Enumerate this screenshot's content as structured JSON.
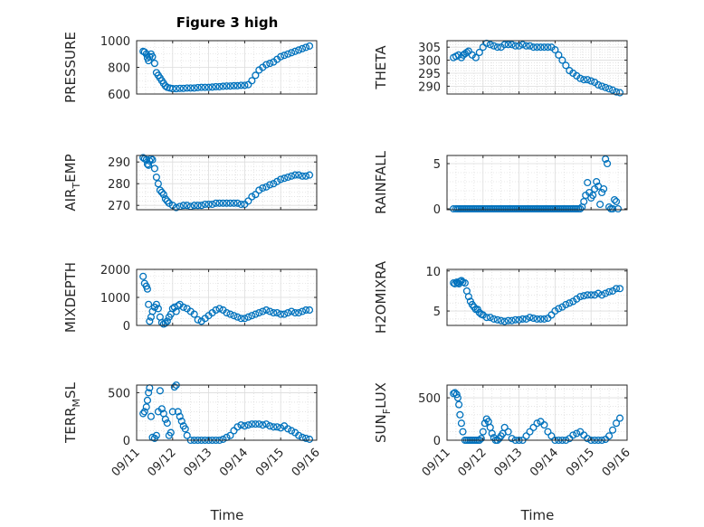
{
  "figure": {
    "title": "Figure 3 high",
    "xlabel": "Time",
    "marker_color": "#0072BD",
    "grid": true,
    "x_ticks": [
      "09/11",
      "09/12",
      "09/13",
      "09/14",
      "09/15",
      "09/16"
    ]
  },
  "chart_data": [
    {
      "type": "scatter",
      "id": "pressure",
      "title": "Figure 3 high",
      "ylabel": "PRESSURE",
      "ylabel_sub": "",
      "ylabel_rest": "",
      "xlabel": "",
      "xlim": [
        0,
        5
      ],
      "ylim": [
        600,
        1000
      ],
      "yticks": [
        600,
        800,
        1000
      ],
      "yminor": 50,
      "x": [
        0.18,
        0.22,
        0.27,
        0.3,
        0.33,
        0.36,
        0.4,
        0.44,
        0.5,
        0.55,
        0.6,
        0.65,
        0.7,
        0.75,
        0.8,
        0.85,
        0.92,
        1.0,
        1.1,
        1.2,
        1.3,
        1.4,
        1.5,
        1.6,
        1.7,
        1.8,
        1.9,
        2.0,
        2.1,
        2.2,
        2.3,
        2.4,
        2.5,
        2.6,
        2.7,
        2.8,
        2.9,
        3.0,
        3.1,
        3.2,
        3.3,
        3.4,
        3.5,
        3.6,
        3.7,
        3.8,
        3.9,
        4.0,
        4.1,
        4.2,
        4.3,
        4.4,
        4.5,
        4.6,
        4.7,
        4.8
      ],
      "y": [
        920,
        915,
        900,
        870,
        850,
        880,
        900,
        880,
        830,
        760,
        740,
        720,
        700,
        680,
        660,
        650,
        645,
        640,
        640,
        642,
        642,
        645,
        645,
        645,
        648,
        650,
        650,
        650,
        652,
        655,
        655,
        658,
        660,
        660,
        662,
        662,
        665,
        665,
        670,
        700,
        740,
        780,
        800,
        820,
        830,
        840,
        860,
        880,
        890,
        900,
        910,
        920,
        930,
        940,
        950,
        960
      ]
    },
    {
      "type": "scatter",
      "id": "theta",
      "title": "",
      "ylabel": "THETA",
      "ylabel_sub": "",
      "ylabel_rest": "",
      "xlabel": "",
      "xlim": [
        0,
        5
      ],
      "ylim": [
        287,
        307.5
      ],
      "yticks": [
        290,
        295,
        300,
        305
      ],
      "yminor": 1,
      "x": [
        0.18,
        0.25,
        0.32,
        0.4,
        0.45,
        0.5,
        0.55,
        0.6,
        0.7,
        0.8,
        0.9,
        1.0,
        1.1,
        1.2,
        1.3,
        1.4,
        1.5,
        1.6,
        1.7,
        1.8,
        1.9,
        2.0,
        2.1,
        2.2,
        2.3,
        2.4,
        2.5,
        2.6,
        2.7,
        2.8,
        2.9,
        3.0,
        3.1,
        3.2,
        3.3,
        3.4,
        3.5,
        3.6,
        3.7,
        3.8,
        3.9,
        4.0,
        4.1,
        4.2,
        4.3,
        4.4,
        4.5,
        4.6,
        4.7,
        4.8
      ],
      "y": [
        301,
        301.5,
        302,
        301,
        302,
        302.5,
        303,
        303.5,
        302,
        301,
        303,
        305,
        306.5,
        306,
        305.5,
        305,
        305,
        306,
        306,
        306,
        305.5,
        305.5,
        306,
        305.5,
        305.5,
        305,
        305,
        305,
        305,
        305,
        305,
        304,
        302,
        300,
        298,
        296,
        295,
        294,
        293,
        292.5,
        292.5,
        292,
        291.5,
        290.5,
        290,
        289.5,
        289,
        288.5,
        287.8,
        287.5
      ]
    },
    {
      "type": "scatter",
      "id": "air_temp",
      "title": "",
      "ylabel": "AIR",
      "ylabel_sub": "T",
      "ylabel_rest": "EMP",
      "xlabel": "",
      "xlim": [
        0,
        5
      ],
      "ylim": [
        268,
        293
      ],
      "yticks": [
        270,
        280,
        290
      ],
      "yminor": 2,
      "x": [
        0.18,
        0.22,
        0.27,
        0.3,
        0.33,
        0.36,
        0.4,
        0.44,
        0.5,
        0.55,
        0.6,
        0.65,
        0.7,
        0.75,
        0.8,
        0.85,
        0.9,
        1.0,
        1.1,
        1.2,
        1.3,
        1.4,
        1.5,
        1.6,
        1.7,
        1.8,
        1.9,
        2.0,
        2.1,
        2.2,
        2.3,
        2.4,
        2.5,
        2.6,
        2.7,
        2.8,
        2.9,
        3.0,
        3.1,
        3.2,
        3.3,
        3.4,
        3.5,
        3.6,
        3.7,
        3.8,
        3.9,
        4.0,
        4.1,
        4.2,
        4.3,
        4.4,
        4.5,
        4.6,
        4.7,
        4.8
      ],
      "y": [
        292,
        291.5,
        291,
        289,
        288.5,
        290.5,
        291.5,
        291,
        287,
        283,
        280,
        277,
        276,
        275,
        273,
        272,
        271,
        270,
        269,
        269.5,
        270,
        270,
        269.5,
        270,
        270,
        270,
        270.5,
        270.5,
        270.5,
        271,
        271,
        271,
        271,
        271,
        271,
        271,
        270.5,
        270.5,
        272,
        274,
        275,
        277,
        278,
        278.5,
        279.5,
        280,
        281,
        282,
        282.5,
        283,
        283.5,
        284,
        284,
        283.5,
        283.5,
        284
      ]
    },
    {
      "type": "scatter",
      "id": "rainfall",
      "title": "",
      "ylabel": "RAINFALL",
      "ylabel_sub": "",
      "ylabel_rest": "",
      "xlabel": "",
      "xlim": [
        0,
        5
      ],
      "ylim": [
        -0.1,
        5.9
      ],
      "yticks": [
        0,
        5
      ],
      "yminor": 1,
      "x": [
        0.18,
        0.25,
        0.3,
        0.35,
        0.4,
        0.45,
        0.5,
        0.55,
        0.6,
        0.65,
        0.7,
        0.75,
        0.8,
        0.85,
        0.9,
        0.95,
        1.0,
        1.05,
        1.1,
        1.15,
        1.2,
        1.25,
        1.3,
        1.35,
        1.4,
        1.45,
        1.5,
        1.55,
        1.6,
        1.65,
        1.7,
        1.75,
        1.8,
        1.85,
        1.9,
        1.95,
        2.0,
        2.05,
        2.1,
        2.15,
        2.2,
        2.25,
        2.3,
        2.35,
        2.4,
        2.45,
        2.5,
        2.55,
        2.6,
        2.65,
        2.7,
        2.75,
        2.8,
        2.85,
        2.9,
        2.95,
        3.0,
        3.05,
        3.1,
        3.15,
        3.2,
        3.25,
        3.3,
        3.35,
        3.4,
        3.45,
        3.5,
        3.55,
        3.6,
        3.65,
        3.7,
        3.75,
        3.8,
        3.85,
        3.9,
        3.95,
        4.0,
        4.05,
        4.1,
        4.15,
        4.2,
        4.25,
        4.3,
        4.35,
        4.4,
        4.45,
        4.5,
        4.55,
        4.6,
        4.65,
        4.7,
        4.75
      ],
      "y": [
        0,
        0,
        0,
        0,
        0,
        0,
        0,
        0,
        0,
        0,
        0,
        0,
        0,
        0,
        0,
        0,
        0,
        0,
        0,
        0,
        0,
        0,
        0,
        0,
        0,
        0,
        0,
        0,
        0,
        0,
        0,
        0,
        0,
        0,
        0,
        0,
        0,
        0,
        0,
        0,
        0,
        0,
        0,
        0,
        0,
        0,
        0,
        0,
        0,
        0,
        0,
        0,
        0,
        0,
        0,
        0,
        0,
        0,
        0,
        0,
        0,
        0,
        0,
        0,
        0,
        0,
        0,
        0,
        0,
        0,
        0,
        0.2,
        0.8,
        1.5,
        2.9,
        1.8,
        1.2,
        1.5,
        2.2,
        3,
        2.5,
        0.5,
        1.8,
        2.2,
        5.5,
        5,
        0.2,
        0,
        0,
        1,
        0.8,
        0
      ]
    },
    {
      "type": "scatter",
      "id": "mixdepth",
      "title": "",
      "ylabel": "MIXDEPTH",
      "ylabel_sub": "",
      "ylabel_rest": "",
      "xlabel": "",
      "xlim": [
        0,
        5
      ],
      "ylim": [
        0,
        2000
      ],
      "yticks": [
        0,
        1000,
        2000
      ],
      "yminor": 250,
      "x": [
        0.18,
        0.22,
        0.27,
        0.3,
        0.33,
        0.36,
        0.4,
        0.44,
        0.5,
        0.55,
        0.6,
        0.65,
        0.7,
        0.75,
        0.8,
        0.85,
        0.9,
        0.95,
        1.0,
        1.05,
        1.1,
        1.15,
        1.2,
        1.3,
        1.4,
        1.5,
        1.6,
        1.7,
        1.8,
        1.9,
        2.0,
        2.1,
        2.2,
        2.3,
        2.4,
        2.5,
        2.6,
        2.7,
        2.8,
        2.9,
        3.0,
        3.1,
        3.2,
        3.3,
        3.4,
        3.5,
        3.6,
        3.7,
        3.8,
        3.9,
        4.0,
        4.1,
        4.2,
        4.3,
        4.4,
        4.5,
        4.6,
        4.7,
        4.8
      ],
      "y": [
        1750,
        1500,
        1400,
        1300,
        750,
        150,
        300,
        500,
        650,
        750,
        600,
        300,
        100,
        50,
        80,
        150,
        300,
        400,
        600,
        650,
        500,
        700,
        750,
        650,
        600,
        500,
        400,
        200,
        150,
        250,
        350,
        450,
        550,
        600,
        550,
        450,
        400,
        350,
        300,
        250,
        250,
        300,
        350,
        400,
        450,
        500,
        550,
        500,
        450,
        450,
        400,
        400,
        450,
        500,
        450,
        450,
        500,
        550,
        550
      ]
    },
    {
      "type": "scatter",
      "id": "h2omixra",
      "title": "",
      "ylabel": "H2OMIXRA",
      "ylabel_sub": "",
      "ylabel_rest": "",
      "xlabel": "",
      "xlim": [
        0,
        5
      ],
      "ylim": [
        3.2,
        10.2
      ],
      "yticks": [
        5,
        10
      ],
      "yminor": 1,
      "x": [
        0.18,
        0.22,
        0.27,
        0.3,
        0.33,
        0.36,
        0.4,
        0.44,
        0.5,
        0.55,
        0.6,
        0.65,
        0.7,
        0.75,
        0.8,
        0.85,
        0.9,
        0.95,
        1.0,
        1.1,
        1.2,
        1.3,
        1.4,
        1.5,
        1.6,
        1.7,
        1.8,
        1.9,
        2.0,
        2.1,
        2.2,
        2.3,
        2.4,
        2.5,
        2.6,
        2.7,
        2.8,
        2.9,
        3.0,
        3.1,
        3.2,
        3.3,
        3.4,
        3.5,
        3.6,
        3.7,
        3.8,
        3.9,
        4.0,
        4.1,
        4.2,
        4.3,
        4.4,
        4.5,
        4.6,
        4.7,
        4.8
      ],
      "y": [
        8.5,
        8.4,
        8.6,
        8.5,
        8.4,
        8.7,
        8.8,
        8.6,
        8.5,
        7.5,
        6.8,
        6.2,
        5.8,
        5.5,
        5.2,
        5.2,
        4.8,
        4.6,
        4.5,
        4.2,
        4.2,
        4.0,
        3.9,
        3.8,
        3.7,
        3.8,
        3.8,
        3.9,
        3.9,
        4.0,
        4.0,
        4.2,
        4.1,
        4.0,
        4.0,
        4.0,
        4.1,
        4.5,
        5.0,
        5.3,
        5.5,
        5.8,
        6.0,
        6.2,
        6.5,
        6.8,
        6.9,
        7.0,
        7.0,
        7.0,
        7.2,
        7.0,
        7.2,
        7.4,
        7.5,
        7.8,
        7.8
      ]
    },
    {
      "type": "scatter",
      "id": "terr_msl",
      "title": "",
      "ylabel": "TERR",
      "ylabel_sub": "M",
      "ylabel_rest": "SL",
      "xlabel": "",
      "xlim": [
        0,
        5
      ],
      "ylim": [
        0,
        580
      ],
      "yticks": [
        0,
        500
      ],
      "yminor": 100,
      "x": [
        0.18,
        0.22,
        0.27,
        0.3,
        0.33,
        0.36,
        0.4,
        0.44,
        0.5,
        0.55,
        0.6,
        0.65,
        0.7,
        0.75,
        0.8,
        0.85,
        0.9,
        0.95,
        1.0,
        1.05,
        1.1,
        1.15,
        1.2,
        1.25,
        1.3,
        1.35,
        1.4,
        1.5,
        1.6,
        1.7,
        1.8,
        1.9,
        2.0,
        2.1,
        2.2,
        2.3,
        2.4,
        2.5,
        2.6,
        2.7,
        2.8,
        2.9,
        3.0,
        3.1,
        3.2,
        3.3,
        3.4,
        3.5,
        3.6,
        3.7,
        3.8,
        3.9,
        4.0,
        4.1,
        4.2,
        4.3,
        4.4,
        4.5,
        4.6,
        4.7,
        4.8
      ],
      "y": [
        280,
        300,
        350,
        420,
        500,
        550,
        250,
        30,
        20,
        50,
        300,
        520,
        330,
        280,
        220,
        180,
        50,
        80,
        300,
        560,
        580,
        300,
        250,
        200,
        150,
        120,
        50,
        0,
        0,
        0,
        0,
        0,
        0,
        0,
        0,
        0,
        10,
        30,
        50,
        100,
        140,
        160,
        150,
        160,
        170,
        170,
        170,
        160,
        170,
        150,
        140,
        140,
        130,
        150,
        120,
        100,
        80,
        50,
        30,
        20,
        10
      ]
    },
    {
      "type": "scatter",
      "id": "sun_flux",
      "title": "",
      "ylabel": "SUN",
      "ylabel_sub": "F",
      "ylabel_rest": "LUX",
      "xlabel": "",
      "xlim": [
        0,
        5
      ],
      "ylim": [
        0,
        650
      ],
      "yticks": [
        0,
        500
      ],
      "yminor": 100,
      "x": [
        0.18,
        0.22,
        0.27,
        0.3,
        0.33,
        0.36,
        0.4,
        0.44,
        0.5,
        0.55,
        0.6,
        0.65,
        0.7,
        0.75,
        0.8,
        0.85,
        0.9,
        0.95,
        1.0,
        1.05,
        1.1,
        1.15,
        1.2,
        1.25,
        1.3,
        1.35,
        1.4,
        1.45,
        1.5,
        1.55,
        1.6,
        1.7,
        1.8,
        1.9,
        2.0,
        2.1,
        2.2,
        2.3,
        2.4,
        2.5,
        2.6,
        2.7,
        2.8,
        2.9,
        3.0,
        3.1,
        3.2,
        3.3,
        3.4,
        3.5,
        3.6,
        3.7,
        3.8,
        3.9,
        4.0,
        4.1,
        4.2,
        4.3,
        4.4,
        4.5,
        4.6,
        4.7,
        4.8
      ],
      "y": [
        550,
        560,
        540,
        500,
        420,
        300,
        200,
        100,
        0,
        0,
        0,
        0,
        0,
        0,
        0,
        0,
        0,
        20,
        100,
        200,
        250,
        220,
        150,
        80,
        30,
        0,
        0,
        20,
        50,
        80,
        150,
        100,
        20,
        0,
        0,
        0,
        50,
        100,
        150,
        200,
        220,
        180,
        100,
        50,
        0,
        0,
        0,
        0,
        20,
        60,
        80,
        100,
        60,
        20,
        0,
        0,
        0,
        0,
        10,
        50,
        120,
        200,
        260
      ]
    }
  ]
}
